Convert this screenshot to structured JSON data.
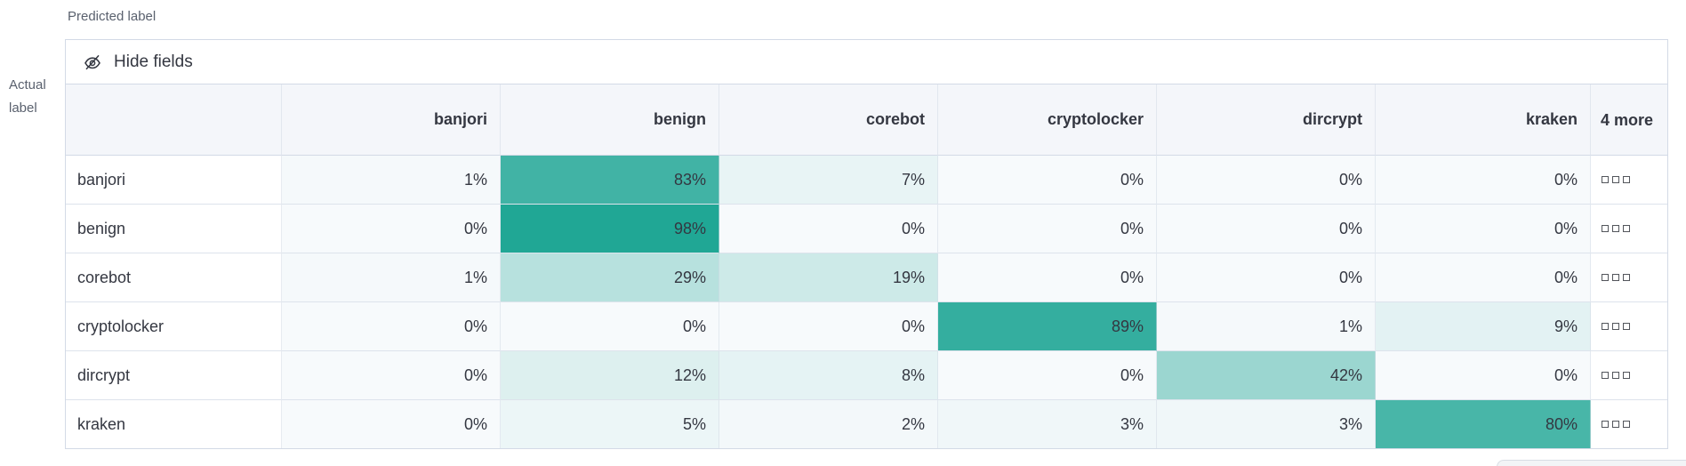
{
  "axis": {
    "predicted_label": "Predicted label",
    "actual_label": "Actual label"
  },
  "toolbar": {
    "hide_fields_label": "Hide fields",
    "hide_fields_icon": "eye-closed-icon"
  },
  "matrix": {
    "columns": [
      "banjori",
      "benign",
      "corebot",
      "cryptolocker",
      "dircrypt",
      "kraken"
    ],
    "more_column_label": "4 more",
    "more_cell_icon": "boxes-horizontal-icon",
    "rows": [
      {
        "label": "banjori",
        "values": [
          1,
          83,
          7,
          0,
          0,
          0
        ]
      },
      {
        "label": "benign",
        "values": [
          0,
          98,
          0,
          0,
          0,
          0
        ]
      },
      {
        "label": "corebot",
        "values": [
          1,
          29,
          19,
          0,
          0,
          0
        ]
      },
      {
        "label": "cryptolocker",
        "values": [
          0,
          0,
          0,
          89,
          1,
          9
        ]
      },
      {
        "label": "dircrypt",
        "values": [
          0,
          12,
          8,
          0,
          42,
          0
        ]
      },
      {
        "label": "kraken",
        "values": [
          0,
          5,
          2,
          3,
          3,
          80
        ]
      }
    ]
  },
  "heatmap": {
    "zero_color": "#f7fafc",
    "full_color": "#1ca593",
    "cell_text_color": "#343741"
  },
  "chart_data": {
    "type": "heatmap",
    "title": "",
    "xlabel": "Predicted label",
    "ylabel": "Actual label",
    "x_categories": [
      "banjori",
      "benign",
      "corebot",
      "cryptolocker",
      "dircrypt",
      "kraken"
    ],
    "y_categories": [
      "banjori",
      "benign",
      "corebot",
      "cryptolocker",
      "dircrypt",
      "kraken"
    ],
    "values_percent": [
      [
        1,
        83,
        7,
        0,
        0,
        0
      ],
      [
        0,
        98,
        0,
        0,
        0,
        0
      ],
      [
        1,
        29,
        19,
        0,
        0,
        0
      ],
      [
        0,
        0,
        0,
        89,
        1,
        9
      ],
      [
        0,
        12,
        8,
        0,
        42,
        0
      ],
      [
        0,
        5,
        2,
        3,
        3,
        80
      ]
    ],
    "value_range": [
      0,
      100
    ],
    "color_scale": [
      "#f7fafc",
      "#1ca593"
    ],
    "hidden_columns_label": "4 more"
  }
}
